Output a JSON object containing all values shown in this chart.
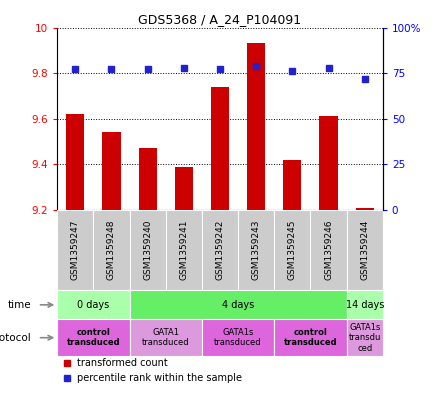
{
  "title": "GDS5368 / A_24_P104091",
  "samples": [
    "GSM1359247",
    "GSM1359248",
    "GSM1359240",
    "GSM1359241",
    "GSM1359242",
    "GSM1359243",
    "GSM1359245",
    "GSM1359246",
    "GSM1359244"
  ],
  "bar_values": [
    9.62,
    9.54,
    9.47,
    9.39,
    9.74,
    9.93,
    9.42,
    9.61,
    9.21
  ],
  "dot_values": [
    77,
    77,
    77,
    78,
    77,
    79,
    76,
    78,
    72
  ],
  "ymin": 9.2,
  "ymax": 10.0,
  "y2min": 0,
  "y2max": 100,
  "yticks": [
    9.2,
    9.4,
    9.6,
    9.8,
    10.0
  ],
  "y2ticks": [
    0,
    25,
    50,
    75,
    100
  ],
  "y2ticklabels": [
    "0",
    "25",
    "50",
    "75",
    "100%"
  ],
  "bar_color": "#cc0000",
  "dot_color": "#2222cc",
  "bar_bottom": 9.2,
  "time_groups": [
    {
      "label": "0 days",
      "start": 0,
      "end": 2,
      "color": "#aaffaa"
    },
    {
      "label": "4 days",
      "start": 2,
      "end": 8,
      "color": "#66ee66"
    },
    {
      "label": "14 days",
      "start": 8,
      "end": 9,
      "color": "#aaffaa"
    }
  ],
  "protocol_groups": [
    {
      "label": "control\ntransduced",
      "start": 0,
      "end": 2,
      "color": "#dd66dd",
      "bold": true
    },
    {
      "label": "GATA1\ntransduced",
      "start": 2,
      "end": 4,
      "color": "#dd99dd",
      "bold": false
    },
    {
      "label": "GATA1s\ntransduced",
      "start": 4,
      "end": 6,
      "color": "#dd66dd",
      "bold": false
    },
    {
      "label": "control\ntransduced",
      "start": 6,
      "end": 8,
      "color": "#dd66dd",
      "bold": true
    },
    {
      "label": "GATA1s\ntransdu\nced",
      "start": 8,
      "end": 9,
      "color": "#dd99dd",
      "bold": false
    }
  ],
  "sample_box_color": "#cccccc",
  "left_label_color": "#888888"
}
